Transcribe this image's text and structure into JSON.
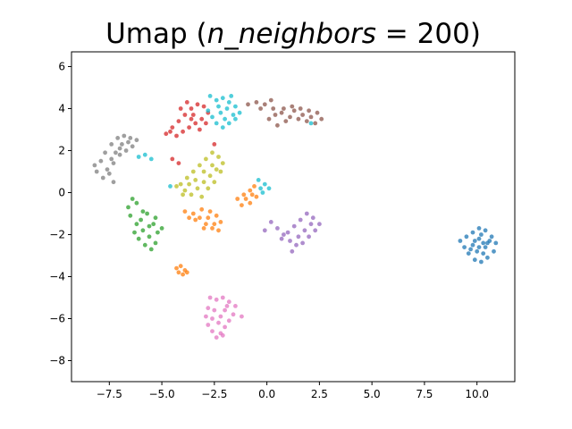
{
  "chart_data": {
    "type": "scatter",
    "title": "Umap ($n\\_neighbors = 200$)",
    "title_parts": {
      "prefix": "Umap (",
      "math": "n_neighbors",
      "eq": " = 200",
      "suffix": ")"
    },
    "xlabel": "",
    "ylabel": "",
    "xlim": [
      -9.3,
      11.8
    ],
    "ylim": [
      -9.0,
      6.7
    ],
    "xticks": [
      -7.5,
      -5.0,
      -2.5,
      0.0,
      2.5,
      5.0,
      7.5,
      10.0
    ],
    "yticks": [
      -8,
      -6,
      -4,
      -2,
      0,
      2,
      4,
      6
    ],
    "xtick_labels": [
      "−7.5",
      "−5.0",
      "−2.5",
      "0.0",
      "2.5",
      "5.0",
      "7.5",
      "10.0"
    ],
    "ytick_labels": [
      "−8",
      "−6",
      "−4",
      "−2",
      "0",
      "2",
      "4",
      "6"
    ],
    "grid": false,
    "legend": "none",
    "series": [
      {
        "color": "#1f77b4",
        "points": [
          [
            9.8,
            -1.9
          ],
          [
            10.1,
            -1.7
          ],
          [
            10.4,
            -1.8
          ],
          [
            10.7,
            -2.1
          ],
          [
            10.9,
            -2.4
          ],
          [
            10.8,
            -2.8
          ],
          [
            10.5,
            -3.1
          ],
          [
            10.2,
            -3.3
          ],
          [
            9.9,
            -3.2
          ],
          [
            9.6,
            -2.9
          ],
          [
            9.4,
            -2.6
          ],
          [
            9.2,
            -2.3
          ],
          [
            9.5,
            -2.1
          ],
          [
            9.8,
            -2.5
          ],
          [
            10.1,
            -2.2
          ],
          [
            10.4,
            -2.6
          ],
          [
            10.6,
            -2.3
          ],
          [
            10.3,
            -2.9
          ],
          [
            10.0,
            -2.8
          ],
          [
            9.7,
            -2.7
          ],
          [
            10.2,
            -2.0
          ],
          [
            10.5,
            -2.4
          ],
          [
            9.9,
            -2.3
          ],
          [
            10.1,
            -2.6
          ],
          [
            10.3,
            -2.4
          ]
        ]
      },
      {
        "color": "#ff7f0e",
        "points": [
          [
            -3.9,
            -0.9
          ],
          [
            -3.5,
            -1.0
          ],
          [
            -3.2,
            -1.2
          ],
          [
            -2.9,
            -1.5
          ],
          [
            -2.6,
            -1.7
          ],
          [
            -2.3,
            -1.8
          ],
          [
            -2.2,
            -1.4
          ],
          [
            -2.4,
            -1.1
          ],
          [
            -2.7,
            -0.9
          ],
          [
            -3.1,
            -0.8
          ],
          [
            -3.4,
            -1.3
          ],
          [
            -3.7,
            -1.2
          ],
          [
            -3.0,
            -1.7
          ],
          [
            -2.5,
            -1.5
          ],
          [
            -2.8,
            -1.2
          ],
          [
            -1.4,
            -0.3
          ],
          [
            -1.1,
            -0.1
          ],
          [
            -0.8,
            0.1
          ],
          [
            -0.6,
            0.3
          ],
          [
            -0.5,
            -0.2
          ],
          [
            -0.8,
            -0.5
          ],
          [
            -1.2,
            -0.6
          ],
          [
            -1.0,
            -0.3
          ],
          [
            -0.7,
            -0.1
          ],
          [
            -4.3,
            -3.6
          ],
          [
            -4.1,
            -3.5
          ],
          [
            -3.9,
            -3.7
          ],
          [
            -4.0,
            -3.9
          ],
          [
            -3.8,
            -3.8
          ],
          [
            -4.2,
            -3.8
          ]
        ]
      },
      {
        "color": "#2ca02c",
        "points": [
          [
            -6.4,
            -0.3
          ],
          [
            -6.6,
            -0.7
          ],
          [
            -6.5,
            -1.1
          ],
          [
            -6.2,
            -1.5
          ],
          [
            -5.9,
            -1.8
          ],
          [
            -5.6,
            -2.1
          ],
          [
            -5.3,
            -2.4
          ],
          [
            -5.5,
            -2.7
          ],
          [
            -5.8,
            -2.5
          ],
          [
            -6.1,
            -2.2
          ],
          [
            -6.3,
            -1.9
          ],
          [
            -6.0,
            -1.3
          ],
          [
            -5.7,
            -1.0
          ],
          [
            -5.4,
            -1.5
          ],
          [
            -5.2,
            -1.9
          ],
          [
            -5.6,
            -1.6
          ],
          [
            -5.9,
            -0.9
          ],
          [
            -6.2,
            -0.5
          ],
          [
            -5.3,
            -1.2
          ],
          [
            -5.0,
            -1.7
          ]
        ]
      },
      {
        "color": "#d62728",
        "points": [
          [
            -4.8,
            2.8
          ],
          [
            -4.5,
            3.1
          ],
          [
            -4.2,
            3.4
          ],
          [
            -3.9,
            3.7
          ],
          [
            -3.6,
            4.0
          ],
          [
            -3.3,
            4.2
          ],
          [
            -3.0,
            4.1
          ],
          [
            -2.8,
            3.8
          ],
          [
            -3.1,
            3.5
          ],
          [
            -3.4,
            3.3
          ],
          [
            -3.7,
            3.1
          ],
          [
            -4.0,
            2.9
          ],
          [
            -4.3,
            2.7
          ],
          [
            -3.5,
            3.7
          ],
          [
            -3.8,
            4.3
          ],
          [
            -4.1,
            4.0
          ],
          [
            -3.2,
            3.0
          ],
          [
            -2.9,
            3.3
          ],
          [
            -4.6,
            2.9
          ],
          [
            -3.6,
            3.5
          ],
          [
            -4.5,
            1.6
          ],
          [
            -4.2,
            1.4
          ],
          [
            -2.5,
            2.3
          ]
        ]
      },
      {
        "color": "#9467bd",
        "points": [
          [
            0.2,
            -1.4
          ],
          [
            0.5,
            -1.7
          ],
          [
            0.8,
            -2.0
          ],
          [
            1.1,
            -2.3
          ],
          [
            1.4,
            -2.5
          ],
          [
            1.7,
            -2.4
          ],
          [
            2.0,
            -2.1
          ],
          [
            2.3,
            -1.8
          ],
          [
            2.5,
            -1.5
          ],
          [
            2.2,
            -1.2
          ],
          [
            1.9,
            -1.0
          ],
          [
            1.6,
            -1.3
          ],
          [
            1.3,
            -1.6
          ],
          [
            1.0,
            -1.9
          ],
          [
            0.7,
            -2.2
          ],
          [
            1.8,
            -1.8
          ],
          [
            1.5,
            -2.1
          ],
          [
            2.1,
            -1.5
          ],
          [
            1.2,
            -2.8
          ],
          [
            -0.1,
            -1.8
          ]
        ]
      },
      {
        "color": "#8c564b",
        "points": [
          [
            -0.9,
            4.2
          ],
          [
            -0.5,
            4.3
          ],
          [
            -0.1,
            4.2
          ],
          [
            0.3,
            4.0
          ],
          [
            0.7,
            3.8
          ],
          [
            1.1,
            3.6
          ],
          [
            1.5,
            3.5
          ],
          [
            1.9,
            3.4
          ],
          [
            2.3,
            3.3
          ],
          [
            2.6,
            3.5
          ],
          [
            2.4,
            3.8
          ],
          [
            2.0,
            3.9
          ],
          [
            1.6,
            4.0
          ],
          [
            1.2,
            4.1
          ],
          [
            0.8,
            4.0
          ],
          [
            0.4,
            3.7
          ],
          [
            0.1,
            3.5
          ],
          [
            0.5,
            3.2
          ],
          [
            0.9,
            3.4
          ],
          [
            1.3,
            3.9
          ],
          [
            1.7,
            3.7
          ],
          [
            2.1,
            3.6
          ],
          [
            0.2,
            4.4
          ],
          [
            -0.3,
            4.0
          ]
        ]
      },
      {
        "color": "#e377c2",
        "points": [
          [
            -2.7,
            -5.0
          ],
          [
            -2.4,
            -5.1
          ],
          [
            -2.1,
            -5.0
          ],
          [
            -1.8,
            -5.2
          ],
          [
            -1.5,
            -5.4
          ],
          [
            -1.6,
            -5.8
          ],
          [
            -1.8,
            -6.1
          ],
          [
            -2.0,
            -6.4
          ],
          [
            -2.2,
            -6.7
          ],
          [
            -2.4,
            -6.9
          ],
          [
            -2.6,
            -6.6
          ],
          [
            -2.8,
            -6.3
          ],
          [
            -2.9,
            -5.9
          ],
          [
            -2.8,
            -5.5
          ],
          [
            -2.5,
            -5.6
          ],
          [
            -2.2,
            -5.9
          ],
          [
            -2.0,
            -5.6
          ],
          [
            -2.3,
            -6.2
          ],
          [
            -1.9,
            -5.4
          ],
          [
            -2.6,
            -6.0
          ],
          [
            -1.2,
            -5.9
          ],
          [
            -2.1,
            -6.8
          ]
        ]
      },
      {
        "color": "#7f7f7f",
        "points": [
          [
            -8.1,
            1.0
          ],
          [
            -7.9,
            1.5
          ],
          [
            -7.7,
            1.9
          ],
          [
            -7.4,
            2.3
          ],
          [
            -7.1,
            2.6
          ],
          [
            -6.8,
            2.7
          ],
          [
            -6.5,
            2.6
          ],
          [
            -6.2,
            2.5
          ],
          [
            -6.4,
            2.2
          ],
          [
            -6.7,
            2.0
          ],
          [
            -7.0,
            1.8
          ],
          [
            -7.3,
            1.4
          ],
          [
            -7.6,
            1.1
          ],
          [
            -7.8,
            0.7
          ],
          [
            -7.3,
            0.5
          ],
          [
            -7.5,
            0.9
          ],
          [
            -7.2,
            1.9
          ],
          [
            -6.9,
            2.3
          ],
          [
            -6.6,
            2.4
          ],
          [
            -8.2,
            1.3
          ],
          [
            -7.0,
            2.1
          ],
          [
            -7.4,
            1.6
          ]
        ]
      },
      {
        "color": "#bcbd22",
        "points": [
          [
            -4.1,
            0.4
          ],
          [
            -3.8,
            0.7
          ],
          [
            -3.5,
            1.0
          ],
          [
            -3.2,
            1.3
          ],
          [
            -2.9,
            1.6
          ],
          [
            -2.6,
            1.9
          ],
          [
            -2.3,
            1.7
          ],
          [
            -2.1,
            1.4
          ],
          [
            -2.4,
            1.1
          ],
          [
            -2.7,
            0.8
          ],
          [
            -3.0,
            0.5
          ],
          [
            -3.3,
            0.2
          ],
          [
            -3.6,
            -0.1
          ],
          [
            -3.9,
            0.1
          ],
          [
            -4.3,
            0.3
          ],
          [
            -3.4,
            0.6
          ],
          [
            -3.0,
            1.0
          ],
          [
            -2.6,
            1.3
          ],
          [
            -2.2,
            1.0
          ],
          [
            -3.7,
            0.4
          ],
          [
            -3.1,
            -0.2
          ],
          [
            -2.8,
            0.2
          ],
          [
            -2.5,
            0.5
          ],
          [
            -4.0,
            -0.1
          ]
        ]
      },
      {
        "color": "#17becf",
        "points": [
          [
            -2.7,
            4.6
          ],
          [
            -2.4,
            4.4
          ],
          [
            -2.1,
            4.5
          ],
          [
            -1.8,
            4.3
          ],
          [
            -1.5,
            4.1
          ],
          [
            -1.3,
            3.8
          ],
          [
            -1.5,
            3.5
          ],
          [
            -1.8,
            3.3
          ],
          [
            -2.1,
            3.1
          ],
          [
            -2.4,
            3.3
          ],
          [
            -2.6,
            3.6
          ],
          [
            -2.8,
            3.9
          ],
          [
            -2.2,
            3.8
          ],
          [
            -1.9,
            4.0
          ],
          [
            -1.6,
            3.7
          ],
          [
            -2.0,
            3.5
          ],
          [
            -2.3,
            4.1
          ],
          [
            -1.7,
            4.6
          ],
          [
            -6.1,
            1.7
          ],
          [
            -5.8,
            1.8
          ],
          [
            -5.5,
            1.6
          ],
          [
            -0.4,
            0.6
          ],
          [
            -0.1,
            0.4
          ],
          [
            0.1,
            0.2
          ],
          [
            -0.2,
            0.0
          ],
          [
            -0.3,
            0.2
          ],
          [
            -4.6,
            0.3
          ],
          [
            2.1,
            3.3
          ]
        ]
      }
    ]
  }
}
